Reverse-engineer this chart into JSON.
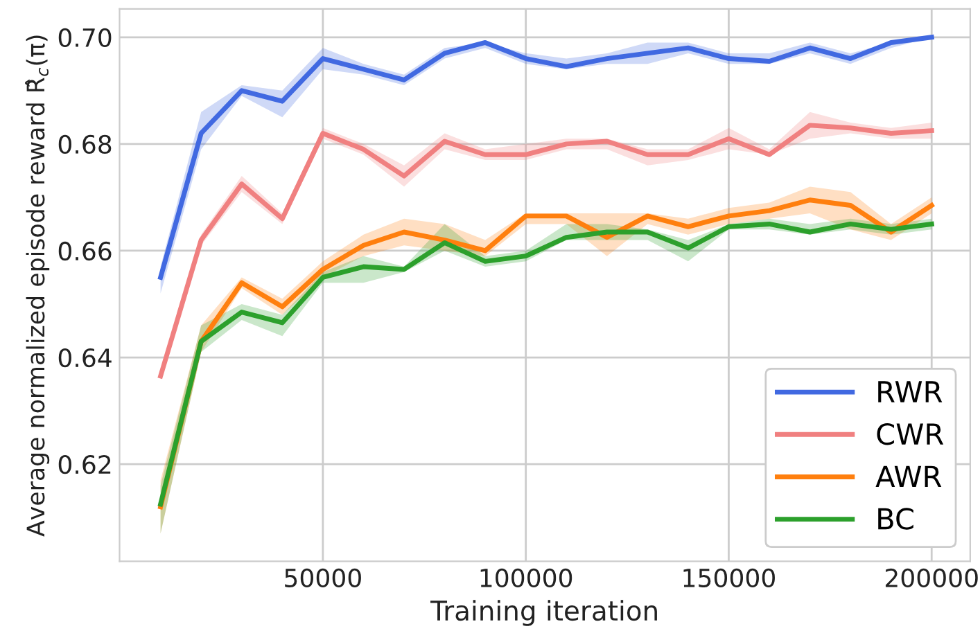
{
  "chart_data": {
    "type": "line",
    "xlabel": "Training iteration",
    "ylabel": "Average normalized episode reward R̂$_{c}$(π)",
    "x": [
      10000,
      20000,
      30000,
      40000,
      50000,
      60000,
      70000,
      80000,
      90000,
      100000,
      110000,
      120000,
      130000,
      140000,
      150000,
      160000,
      170000,
      180000,
      190000,
      200000
    ],
    "series": [
      {
        "name": "RWR",
        "color": "#4169e1",
        "values": [
          0.655,
          0.682,
          0.69,
          0.688,
          0.696,
          0.694,
          0.692,
          0.697,
          0.699,
          0.696,
          0.6945,
          0.696,
          0.697,
          0.698,
          0.696,
          0.6955,
          0.698,
          0.696,
          0.699,
          0.7
        ],
        "lower": [
          0.652,
          0.679,
          0.689,
          0.685,
          0.694,
          0.693,
          0.691,
          0.696,
          0.698,
          0.695,
          0.694,
          0.695,
          0.695,
          0.697,
          0.695,
          0.695,
          0.697,
          0.695,
          0.698,
          0.7
        ],
        "upper": [
          0.657,
          0.686,
          0.691,
          0.69,
          0.698,
          0.695,
          0.693,
          0.698,
          0.699,
          0.697,
          0.696,
          0.697,
          0.699,
          0.699,
          0.697,
          0.697,
          0.699,
          0.697,
          0.699,
          0.7
        ]
      },
      {
        "name": "CWR",
        "color": "#f08080",
        "values": [
          0.6365,
          0.662,
          0.6725,
          0.666,
          0.682,
          0.679,
          0.674,
          0.6805,
          0.678,
          0.678,
          0.68,
          0.6805,
          0.678,
          0.678,
          0.681,
          0.678,
          0.6835,
          0.683,
          0.682,
          0.6825
        ],
        "lower": [
          0.636,
          0.661,
          0.671,
          0.665,
          0.681,
          0.678,
          0.672,
          0.679,
          0.677,
          0.677,
          0.679,
          0.679,
          0.676,
          0.677,
          0.679,
          0.678,
          0.681,
          0.682,
          0.681,
          0.681
        ],
        "upper": [
          0.637,
          0.663,
          0.674,
          0.667,
          0.683,
          0.68,
          0.676,
          0.682,
          0.679,
          0.68,
          0.681,
          0.681,
          0.679,
          0.679,
          0.683,
          0.679,
          0.686,
          0.684,
          0.683,
          0.684
        ]
      },
      {
        "name": "AWR",
        "color": "#ff7f0e",
        "values": [
          0.612,
          0.643,
          0.654,
          0.6495,
          0.6565,
          0.661,
          0.6635,
          0.662,
          0.66,
          0.6665,
          0.6665,
          0.6625,
          0.6665,
          0.6645,
          0.6665,
          0.6675,
          0.6695,
          0.6685,
          0.6635,
          0.6685
        ],
        "lower": [
          0.607,
          0.641,
          0.653,
          0.648,
          0.655,
          0.659,
          0.661,
          0.66,
          0.659,
          0.665,
          0.665,
          0.659,
          0.665,
          0.663,
          0.665,
          0.666,
          0.667,
          0.664,
          0.662,
          0.667
        ],
        "upper": [
          0.617,
          0.646,
          0.655,
          0.651,
          0.658,
          0.663,
          0.666,
          0.665,
          0.662,
          0.667,
          0.667,
          0.667,
          0.667,
          0.666,
          0.668,
          0.669,
          0.672,
          0.671,
          0.665,
          0.67
        ]
      },
      {
        "name": "BC",
        "color": "#2ca02c",
        "values": [
          0.6125,
          0.643,
          0.6485,
          0.6465,
          0.655,
          0.657,
          0.6565,
          0.6615,
          0.658,
          0.659,
          0.6625,
          0.6635,
          0.6635,
          0.6605,
          0.6645,
          0.665,
          0.6635,
          0.665,
          0.664,
          0.665
        ],
        "lower": [
          0.607,
          0.641,
          0.647,
          0.644,
          0.654,
          0.654,
          0.656,
          0.66,
          0.657,
          0.658,
          0.662,
          0.662,
          0.662,
          0.658,
          0.664,
          0.664,
          0.663,
          0.664,
          0.663,
          0.664
        ],
        "upper": [
          0.616,
          0.646,
          0.65,
          0.648,
          0.656,
          0.659,
          0.657,
          0.665,
          0.659,
          0.66,
          0.665,
          0.665,
          0.664,
          0.662,
          0.665,
          0.666,
          0.665,
          0.666,
          0.665,
          0.666
        ]
      }
    ],
    "xlim": [
      -100,
      209500
    ],
    "ylim": [
      0.6018,
      0.7053
    ],
    "xticks": [
      50000,
      100000,
      150000,
      200000
    ],
    "yticks": [
      0.62,
      0.64,
      0.66,
      0.68,
      {
        "value": 0.7,
        "label": "0.70"
      }
    ],
    "grid": true,
    "legend": "lower right",
    "marker": "none",
    "line_style": "solid"
  }
}
